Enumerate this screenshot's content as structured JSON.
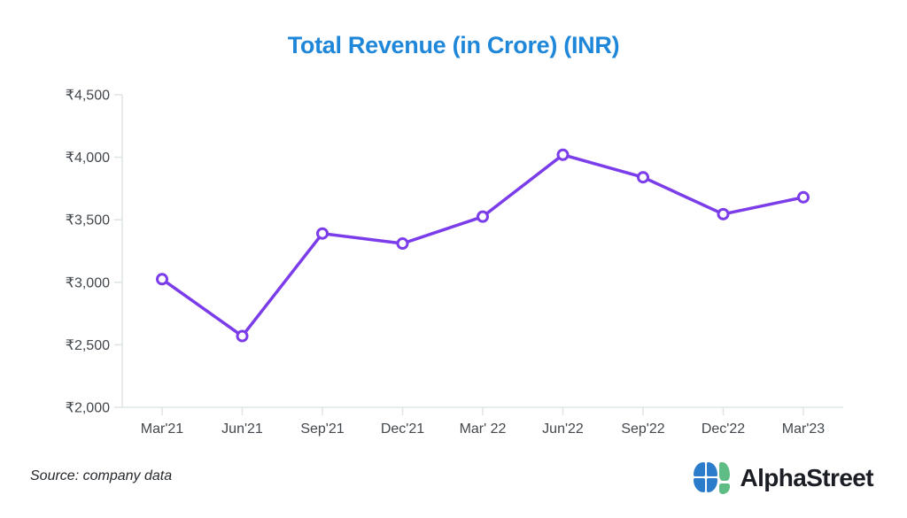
{
  "title": "Total Revenue (in Crore) (INR)",
  "footer": {
    "source": "Source: company data",
    "brand": "AlphaStreet"
  },
  "colors": {
    "title": "#1f87d9",
    "line": "#7b3ce9",
    "marker_fill": "#ffffff",
    "axis": "#dfe5e5",
    "label": "#41474c",
    "source": "#24282c",
    "brand": "#1b1e24",
    "logo_blue": "#2b7ccb",
    "logo_green": "#5fbc84"
  },
  "chart_data": {
    "type": "line",
    "title": "Total Revenue (in Crore) (INR)",
    "xlabel": "",
    "ylabel": "",
    "categories": [
      "Mar'21",
      "Jun'21",
      "Sep'21",
      "Dec'21",
      "Mar' 22",
      "Jun'22",
      "Sep'22",
      "Dec'22",
      "Mar'23"
    ],
    "series": [
      {
        "name": "Total Revenue (Crore INR)",
        "values": [
          3025,
          2570,
          3390,
          3310,
          3525,
          4020,
          3840,
          3545,
          3680
        ]
      }
    ],
    "ylim": [
      2000,
      4500
    ],
    "y_ticks": [
      {
        "label": "₹4,500",
        "value": 4500
      },
      {
        "label": "₹4,000",
        "value": 4000
      },
      {
        "label": "₹3,500",
        "value": 3500
      },
      {
        "label": "₹3,000",
        "value": 3000
      },
      {
        "label": "₹2,500",
        "value": 2500
      },
      {
        "label": "₹2,000",
        "value": 2000
      }
    ],
    "grid": false,
    "legend": "none",
    "marker": "open-circle"
  }
}
